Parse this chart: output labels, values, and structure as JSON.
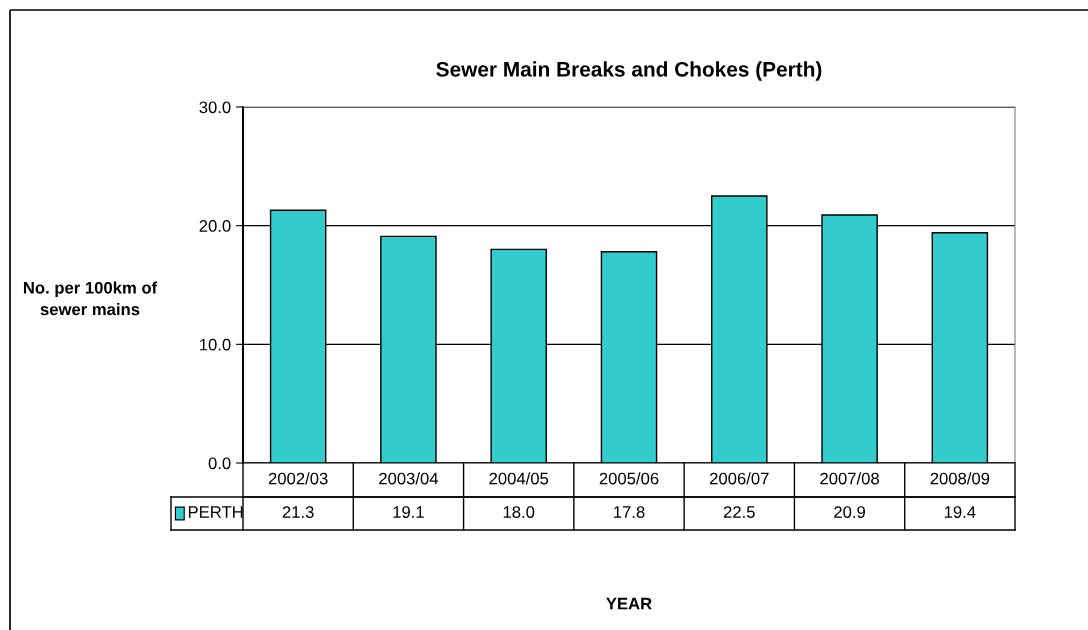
{
  "chart_data": {
    "type": "bar",
    "title": "Sewer Main Breaks and Chokes (Perth)",
    "annotations": [
      "YEAR"
    ],
    "ylabel": "No. per 100km of\nsewer mains",
    "categories": [
      "2002/03",
      "2003/04",
      "2004/05",
      "2005/06",
      "2006/07",
      "2007/08",
      "2008/09"
    ],
    "series": [
      {
        "name": "PERTH",
        "color": "#33cccc",
        "values": [
          21.3,
          19.1,
          18.0,
          17.8,
          22.5,
          20.9,
          19.4
        ],
        "value_labels": [
          "21.3",
          "19.1",
          "18.0",
          "17.8",
          "22.5",
          "20.9",
          "19.4"
        ]
      }
    ],
    "ylim": [
      0,
      30
    ],
    "yticks": [
      {
        "value": 0,
        "label": "0.0"
      },
      {
        "value": 10,
        "label": "10.0"
      },
      {
        "value": 20,
        "label": "20.0"
      },
      {
        "value": 30,
        "label": "30.0"
      }
    ],
    "grid": "y",
    "data_labels": true,
    "legend": "bottom"
  }
}
